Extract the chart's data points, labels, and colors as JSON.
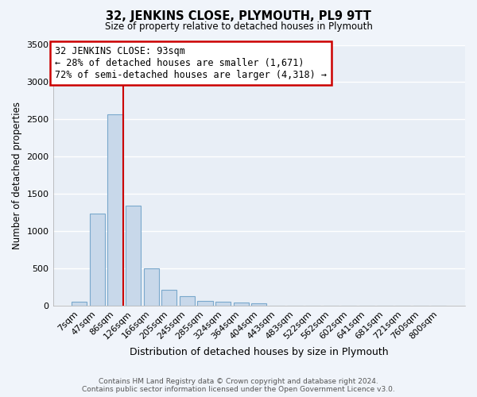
{
  "title": "32, JENKINS CLOSE, PLYMOUTH, PL9 9TT",
  "subtitle": "Size of property relative to detached houses in Plymouth",
  "xlabel": "Distribution of detached houses by size in Plymouth",
  "ylabel": "Number of detached properties",
  "bar_color": "#c8d8ea",
  "bar_edge_color": "#7aa8cc",
  "background_color": "#e8eef6",
  "grid_color": "#ffffff",
  "fig_bg_color": "#f0f4fa",
  "categories": [
    "7sqm",
    "47sqm",
    "86sqm",
    "126sqm",
    "166sqm",
    "205sqm",
    "245sqm",
    "285sqm",
    "324sqm",
    "364sqm",
    "404sqm",
    "443sqm",
    "483sqm",
    "522sqm",
    "562sqm",
    "602sqm",
    "641sqm",
    "681sqm",
    "721sqm",
    "760sqm",
    "800sqm"
  ],
  "values": [
    55,
    1240,
    2570,
    1340,
    495,
    210,
    130,
    60,
    55,
    40,
    35,
    0,
    0,
    0,
    0,
    0,
    0,
    0,
    0,
    0,
    0
  ],
  "ylim": [
    0,
    3500
  ],
  "yticks": [
    0,
    500,
    1000,
    1500,
    2000,
    2500,
    3000,
    3500
  ],
  "vline_x_index": 2,
  "vline_color": "#cc0000",
  "annotation_text": "32 JENKINS CLOSE: 93sqm\n← 28% of detached houses are smaller (1,671)\n72% of semi-detached houses are larger (4,318) →",
  "annotation_box_color": "#ffffff",
  "annotation_box_edge": "#cc0000",
  "footer_line1": "Contains HM Land Registry data © Crown copyright and database right 2024.",
  "footer_line2": "Contains public sector information licensed under the Open Government Licence v3.0."
}
